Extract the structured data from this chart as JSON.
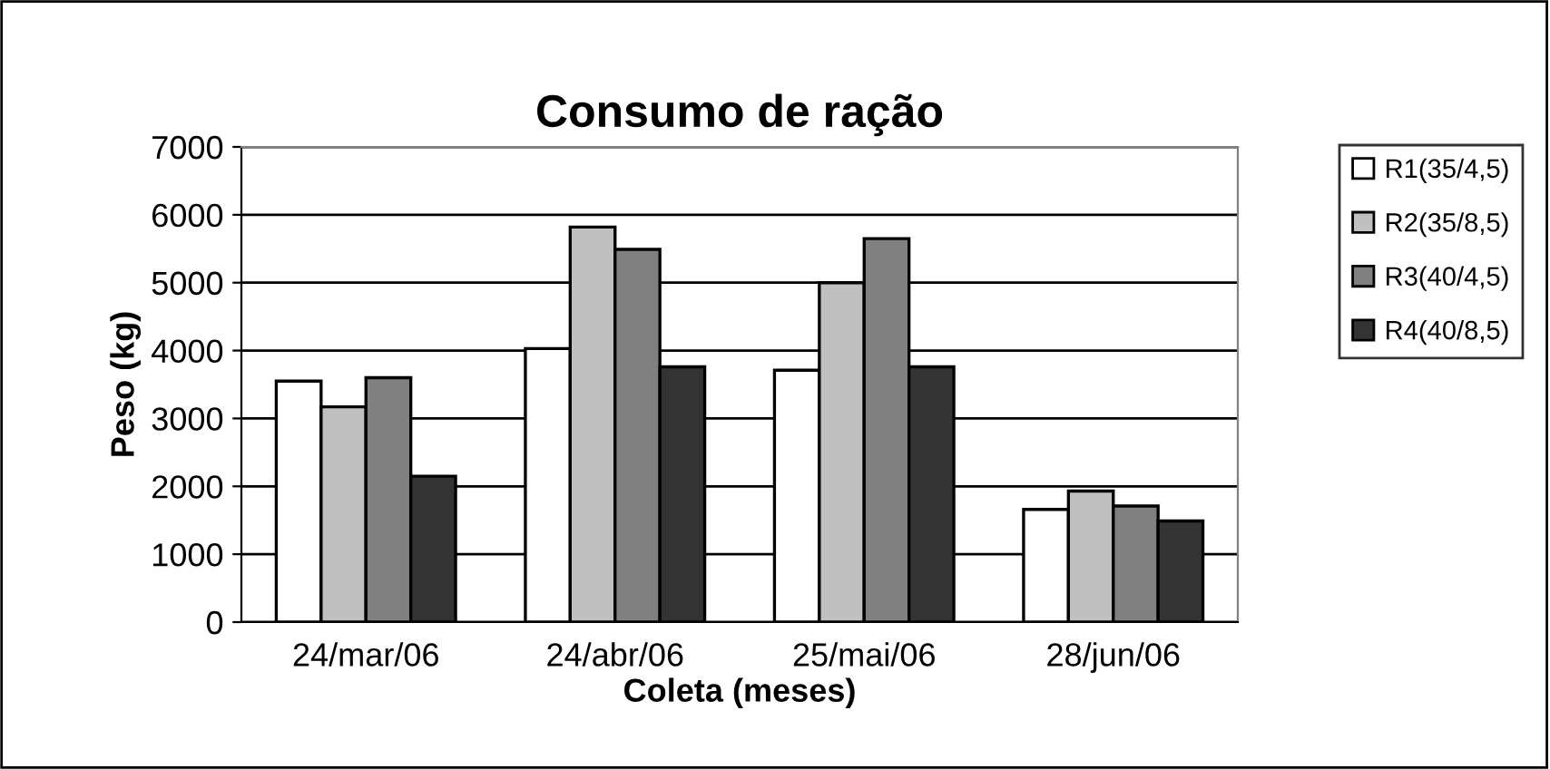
{
  "chart_data": {
    "type": "bar",
    "title": "Consumo de ração",
    "xlabel": "Coleta (meses)",
    "ylabel": "Peso (kg)",
    "categories": [
      "24/mar/06",
      "24/abr/06",
      "25/mai/06",
      "28/jun/06"
    ],
    "series": [
      {
        "name": "R1(35/4,5)",
        "color": "#ffffff",
        "values": [
          3550,
          4030,
          3710,
          1660
        ]
      },
      {
        "name": "R2(35/8,5)",
        "color": "#c0c0c0",
        "values": [
          3170,
          5820,
          5000,
          1930
        ]
      },
      {
        "name": "R3(40/4,5)",
        "color": "#808080",
        "values": [
          3600,
          5490,
          5650,
          1710
        ]
      },
      {
        "name": "R4(40/8,5)",
        "color": "#333333",
        "values": [
          2150,
          3760,
          3760,
          1490
        ]
      }
    ],
    "ylim": [
      0,
      7000
    ],
    "yticks": [
      0,
      1000,
      2000,
      3000,
      4000,
      5000,
      6000,
      7000
    ],
    "grid": "y",
    "legend": "right"
  }
}
